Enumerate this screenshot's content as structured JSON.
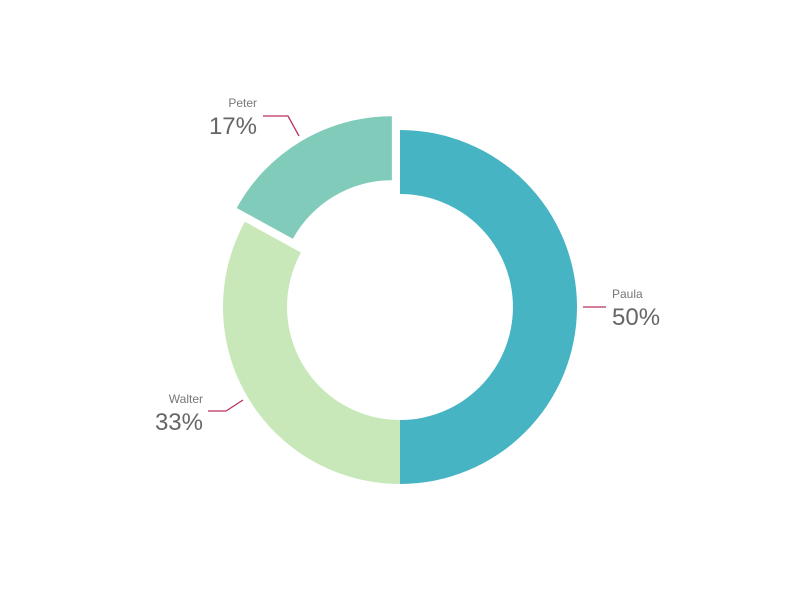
{
  "chart_data": {
    "type": "pie",
    "variant": "donut",
    "slices": [
      {
        "label": "Paula",
        "value": 50,
        "display": "50%",
        "color": "#46b4c3",
        "exploded": false
      },
      {
        "label": "Walter",
        "value": 33,
        "display": "33%",
        "color": "#c8e8b9",
        "exploded": false
      },
      {
        "label": "Peter",
        "value": 17,
        "display": "17%",
        "color": "#80cbba",
        "exploded": true
      }
    ],
    "leader_line_color": "#b8325e",
    "legend": "none"
  }
}
